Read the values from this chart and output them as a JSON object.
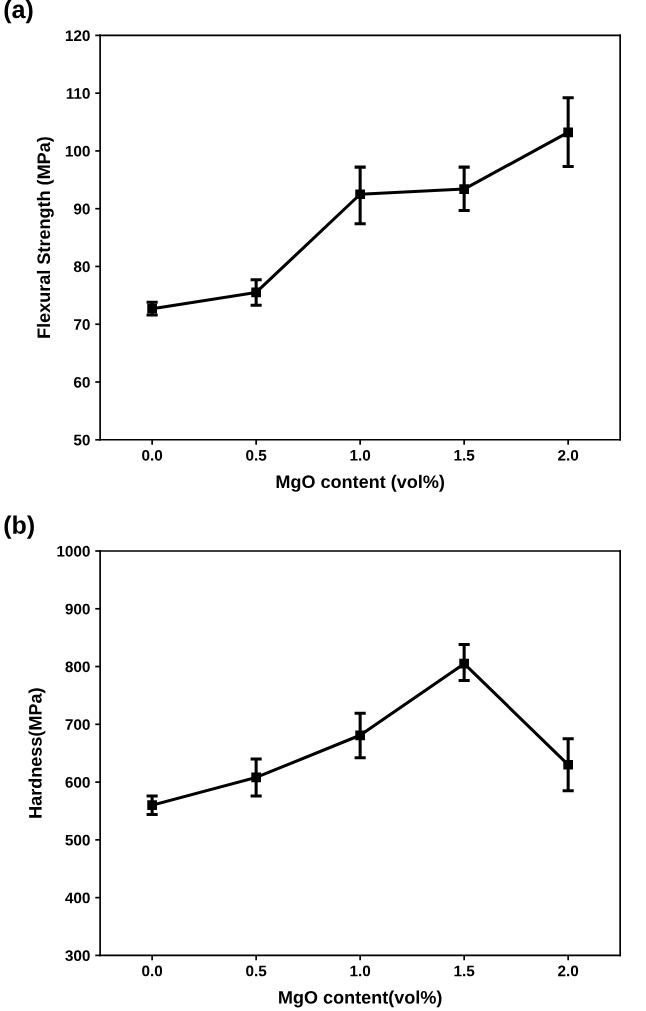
{
  "chart_data": [
    {
      "type": "line",
      "title": "(a)",
      "xlabel": "MgO content (vol%)",
      "ylabel": "Flexural Strength (MPa)",
      "x": [
        0.0,
        0.5,
        1.0,
        1.5,
        2.0
      ],
      "series": [
        {
          "color": "#000000",
          "values": [
            72.7,
            75.5,
            92.5,
            93.4,
            103.2
          ],
          "errors": [
            [
              71.6,
              73.8
            ],
            [
              73.3,
              77.7
            ],
            [
              87.4,
              97.2
            ],
            [
              89.7,
              97.2
            ],
            [
              97.3,
              109.2
            ]
          ]
        }
      ],
      "xlim": [
        -0.25,
        2.25
      ],
      "xticks": [
        {
          "value": 0,
          "label": "0.0"
        },
        {
          "value": 0.5,
          "label": "0.5"
        },
        {
          "value": 1,
          "label": "1.0"
        },
        {
          "value": 1.5,
          "label": "1.5"
        },
        {
          "value": 2,
          "label": "2.0"
        }
      ],
      "ylim": [
        50,
        120
      ],
      "yticks": [
        50,
        60,
        70,
        80,
        90,
        100,
        110,
        120
      ],
      "grid": false,
      "legend": false,
      "marker": "square",
      "line_style": "solid"
    },
    {
      "type": "line",
      "title": "(b)",
      "xlabel": "MgO content(vol%)",
      "ylabel": "Hardness(MPa)",
      "x": [
        0.0,
        0.5,
        1.0,
        1.5,
        2.0
      ],
      "series": [
        {
          "color": "#000000",
          "values": [
            560,
            608,
            681,
            805,
            630
          ],
          "errors": [
            [
              544,
              576
            ],
            [
              576,
              640
            ],
            [
              642,
              719
            ],
            [
              776,
              838
            ],
            [
              585,
              675
            ]
          ]
        }
      ],
      "xlim": [
        -0.25,
        2.25
      ],
      "xticks": [
        {
          "value": 0,
          "label": "0.0"
        },
        {
          "value": 0.5,
          "label": "0.5"
        },
        {
          "value": 1,
          "label": "1.0"
        },
        {
          "value": 1.5,
          "label": "1.5"
        },
        {
          "value": 2,
          "label": "2.0"
        }
      ],
      "ylim": [
        300,
        1000
      ],
      "yticks": [
        300,
        400,
        500,
        600,
        700,
        800,
        900,
        1000
      ],
      "grid": false,
      "legend": false,
      "marker": "square",
      "line_style": "solid"
    }
  ]
}
